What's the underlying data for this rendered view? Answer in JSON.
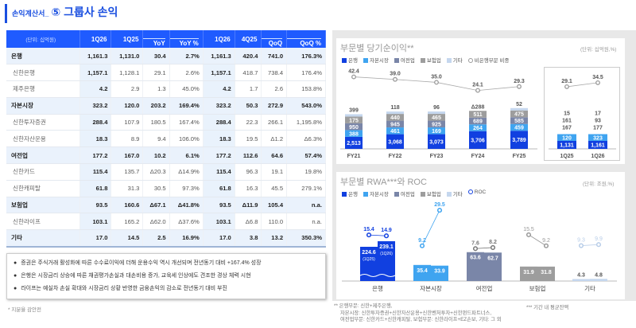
{
  "header": {
    "subtitle": "손익계산서_",
    "title": "⑤ 그룹사 손익"
  },
  "table": {
    "unit": "(단위: 십억원)",
    "columns": [
      "1Q26",
      "1Q25",
      "YoY",
      "YoY %",
      "1Q26",
      "4Q25",
      "QoQ",
      "QoQ %"
    ],
    "rows": [
      {
        "label": "은행",
        "section": true,
        "values": [
          "1,161.3",
          "1,131.0",
          "30.4",
          "2.7%",
          "1,161.3",
          "420.4",
          "741.0",
          "176.3%"
        ]
      },
      {
        "label": "신한은행",
        "values": [
          "1,157.1",
          "1,128.1",
          "29.1",
          "2.6%",
          "1,157.1",
          "418.7",
          "738.4",
          "176.4%"
        ]
      },
      {
        "label": "제주은행",
        "values": [
          "4.2",
          "2.9",
          "1.3",
          "45.0%",
          "4.2",
          "1.7",
          "2.6",
          "153.8%"
        ]
      },
      {
        "label": "자본시장",
        "section": true,
        "values": [
          "323.2",
          "120.0",
          "203.2",
          "169.4%",
          "323.2",
          "50.3",
          "272.9",
          "543.0%"
        ]
      },
      {
        "label": "신한투자증권",
        "values": [
          "288.4",
          "107.9",
          "180.5",
          "167.4%",
          "288.4",
          "22.3",
          "266.1",
          "1,195.8%"
        ]
      },
      {
        "label": "신한자산운용",
        "values": [
          "18.3",
          "8.9",
          "9.4",
          "106.0%",
          "18.3",
          "19.5",
          "Δ1.2",
          "Δ6.3%"
        ]
      },
      {
        "label": "여전업",
        "section": true,
        "values": [
          "177.2",
          "167.0",
          "10.2",
          "6.1%",
          "177.2",
          "112.6",
          "64.6",
          "57.4%"
        ]
      },
      {
        "label": "신한카드",
        "values": [
          "115.4",
          "135.7",
          "Δ20.3",
          "Δ14.9%",
          "115.4",
          "96.3",
          "19.1",
          "19.8%"
        ]
      },
      {
        "label": "신한캐피탈",
        "values": [
          "61.8",
          "31.3",
          "30.5",
          "97.3%",
          "61.8",
          "16.3",
          "45.5",
          "279.1%"
        ]
      },
      {
        "label": "보험업",
        "section": true,
        "values": [
          "93.5",
          "160.6",
          "Δ67.1",
          "Δ41.8%",
          "93.5",
          "Δ11.9",
          "105.4",
          "n.a."
        ]
      },
      {
        "label": "신한라이프",
        "values": [
          "103.1",
          "165.2",
          "Δ62.0",
          "Δ37.6%",
          "103.1",
          "Δ6.8",
          "110.0",
          "n.a."
        ]
      },
      {
        "label": "기타",
        "section": true,
        "values": [
          "17.0",
          "14.5",
          "2.5",
          "16.9%",
          "17.0",
          "3.8",
          "13.2",
          "350.3%"
        ]
      }
    ]
  },
  "bullets": [
    "증권은 주식거래 활성화에 따른 수수료이익에 더해 운용수익 역시 개선되며 전년동기 대비 +167.4% 성장",
    "은행은 시장금리 상승에 따른 채권평가손실과 대손비용 증가, 교육세 인상에도 견조한 경상 체력 시현",
    "라이프는 예실차 손실 확대와 시장금리 상황 반영한 금융손익의 감소로 전년동기 대비 부진"
  ],
  "footnote_left": "* 지분율 감안전",
  "footnote_right": [
    "** 은행부문: 신한+제주은행,",
    "자본시장: 신한투자증권+신한자산운용+신한벤처투자+신한펀드파트너스,",
    "여전업부문: 신한카드+신한캐피탈, 보험부문: 신한라이프+EZ손보, 기타: 그 외"
  ],
  "footnote_right2": "*** 기간 내 평균잔액",
  "colors": {
    "bank": "#1140e0",
    "capital": "#3fa4f0",
    "card": "#7a86a8",
    "insurance": "#9d9d9d",
    "other": "#c5d7ee",
    "accent": "#1f5bff"
  },
  "chart_data": [
    {
      "type": "bar",
      "stacked": true,
      "title": "부문별 당기순이익**",
      "unit": "(단위: 십억원,%)",
      "legend": [
        "은행",
        "자본시장",
        "여전업",
        "보험업",
        "기타",
        "비은행부문 비중"
      ],
      "categories": [
        "FY21",
        "FY22",
        "FY23",
        "FY24",
        "FY25",
        "1Q25",
        "1Q26"
      ],
      "series": [
        {
          "name": "은행",
          "values": [
            2513,
            3068,
            3073,
            3706,
            3789,
            1131,
            1161
          ],
          "labels": [
            "2,513",
            "3,068",
            "3,073",
            "3,706",
            "3,789",
            "1,131",
            "1,161"
          ]
        },
        {
          "name": "자본시장",
          "values": [
            388,
            461,
            169,
            264,
            459,
            120,
            323
          ],
          "labels": [
            "388",
            "461",
            "169",
            "264",
            "459",
            "120",
            "323"
          ]
        },
        {
          "name": "여전업",
          "values": [
            950,
            945,
            925,
            689,
            585,
            167,
            177
          ],
          "labels": [
            "950",
            "945",
            "925",
            "689",
            "585",
            "167",
            "177"
          ]
        },
        {
          "name": "보험업",
          "values": [
            175,
            440,
            465,
            511,
            475,
            161,
            93
          ],
          "labels": [
            "175",
            "440",
            "465",
            "511",
            "475",
            "161",
            "93"
          ]
        },
        {
          "name": "기타",
          "values": [
            399,
            118,
            96,
            -288,
            52,
            15,
            17
          ],
          "labels": [
            "399",
            "118",
            "96",
            "Δ288",
            "52",
            "15",
            "17"
          ]
        }
      ],
      "line": {
        "name": "비은행부문 비중",
        "values": [
          42.4,
          39.0,
          35.0,
          24.1,
          29.3,
          29.1,
          34.5
        ],
        "labels": [
          "42.4",
          "39.0",
          "35.0",
          "24.1",
          "29.3",
          "29.1",
          "34.5"
        ]
      }
    },
    {
      "type": "bar",
      "title": "부문별 RWA***와 ROC",
      "unit": "(단위: 조원,%)",
      "legend": [
        "은행",
        "자본시장",
        "여전업",
        "보험업",
        "기타",
        "ROC"
      ],
      "categories": [
        "은행",
        "자본시장",
        "여전업",
        "보험업",
        "기타"
      ],
      "periods": [
        "1Q25",
        "1Q26"
      ],
      "rwa": [
        [
          224.6,
          239.1
        ],
        [
          35.4,
          33.9
        ],
        [
          63.6,
          62.7
        ],
        [
          31.9,
          31.8
        ],
        [
          4.3,
          4.8
        ]
      ],
      "rwa_labels": [
        [
          "224.6",
          "239.1"
        ],
        [
          "35.4",
          "33.9"
        ],
        [
          "63.6",
          "62.7"
        ],
        [
          "31.9",
          "31.8"
        ],
        [
          "4.3",
          "4.8"
        ]
      ],
      "period_labels": [
        "(1Q25)",
        "(1Q26)"
      ],
      "roc": [
        [
          15.4,
          14.9
        ],
        [
          9.2,
          29.5
        ],
        [
          7.6,
          8.2
        ],
        [
          15.5,
          9.2
        ],
        [
          9.3,
          9.9
        ]
      ],
      "roc_labels": [
        [
          "15.4",
          "14.9"
        ],
        [
          "9.2",
          "29.5"
        ],
        [
          "7.6",
          "8.2"
        ],
        [
          "15.5",
          "9.2"
        ],
        [
          "9.3",
          "9.9"
        ]
      ]
    }
  ]
}
